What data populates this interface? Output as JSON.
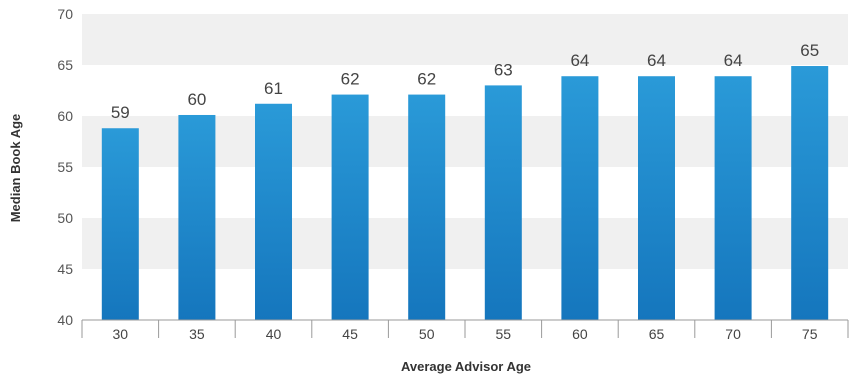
{
  "chart_data": {
    "type": "bar",
    "categories": [
      "30",
      "35",
      "40",
      "45",
      "50",
      "55",
      "60",
      "65",
      "70",
      "75"
    ],
    "values": [
      58.8,
      60.1,
      61.2,
      62.1,
      62.1,
      63.0,
      63.9,
      63.9,
      63.9,
      64.9
    ],
    "data_labels": [
      "59",
      "60",
      "61",
      "62",
      "62",
      "63",
      "64",
      "64",
      "64",
      "65"
    ],
    "xlabel": "Average Advisor Age",
    "ylabel": "Median Book Age",
    "ylim": [
      40,
      70
    ],
    "yticks": [
      "40",
      "45",
      "50",
      "55",
      "60",
      "65",
      "70"
    ],
    "grid": "alternating horizontal bands",
    "colors": {
      "bar_top": "#2a9ad8",
      "bar_bottom": "#1576bd",
      "band": "#f0f0f0",
      "axis": "#9a9a9a"
    }
  }
}
